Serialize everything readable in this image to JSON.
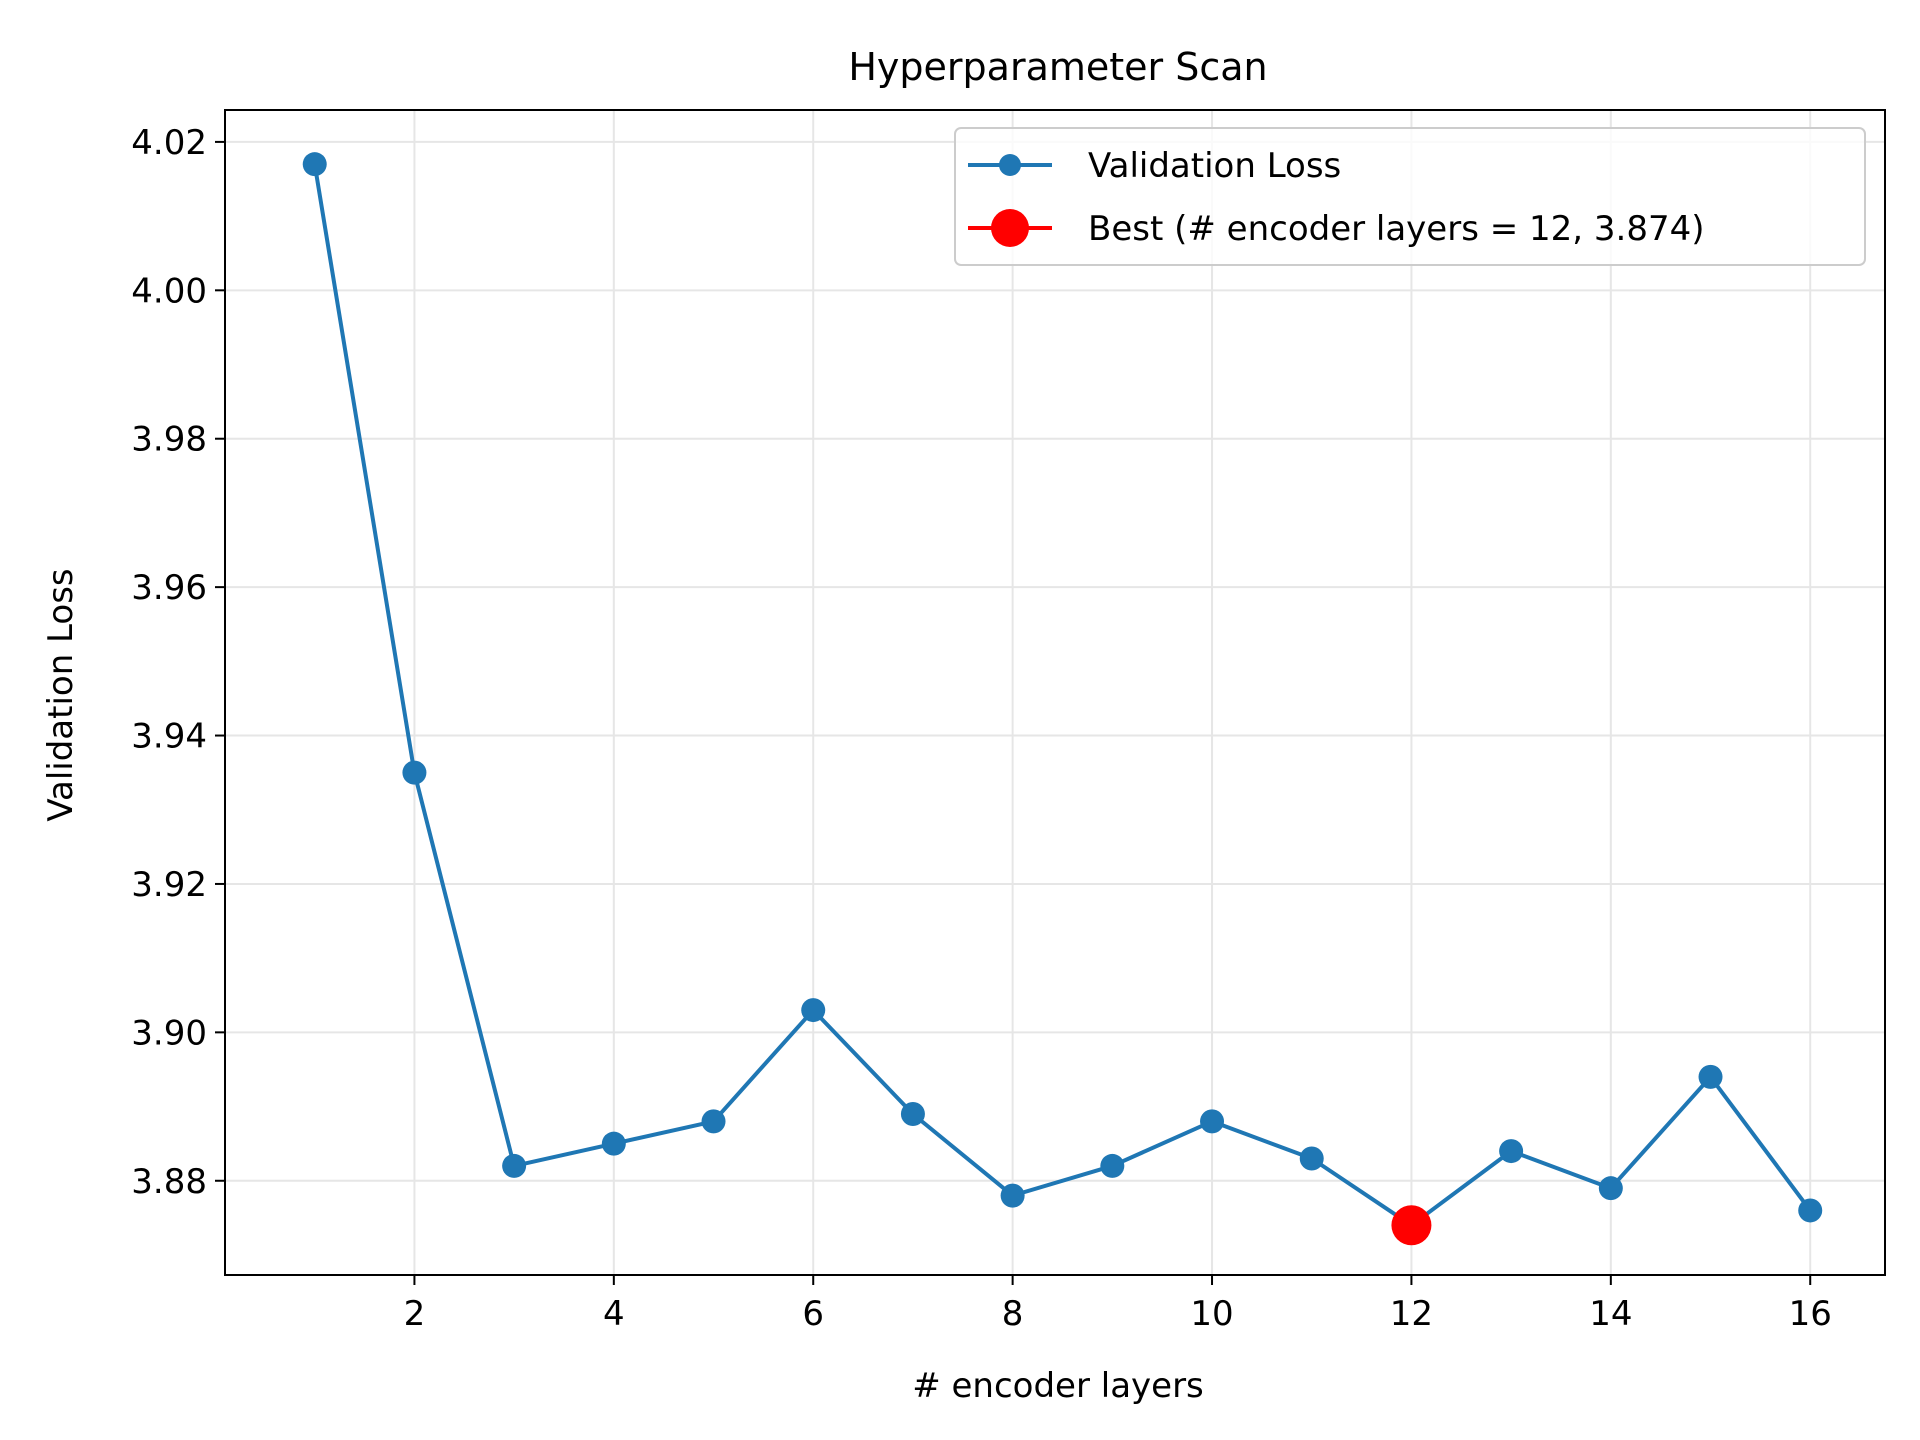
{
  "chart_data": {
    "type": "line",
    "title": "Hyperparameter Scan",
    "xlabel": "# encoder layers",
    "ylabel": "Validation Loss",
    "xlim": [
      0.1,
      16.75
    ],
    "ylim": [
      3.8673,
      4.0243
    ],
    "xticks": [
      2,
      4,
      6,
      8,
      10,
      12,
      14,
      16
    ],
    "yticks": [
      3.88,
      3.9,
      3.92,
      3.94,
      3.96,
      3.98,
      4.0,
      4.02
    ],
    "xtick_labels": [
      "2",
      "4",
      "6",
      "8",
      "10",
      "12",
      "14",
      "16"
    ],
    "ytick_labels": [
      "3.88",
      "3.90",
      "3.92",
      "3.94",
      "3.96",
      "3.98",
      "4.00",
      "4.02"
    ],
    "grid": true,
    "legend_position": "top-right",
    "series": [
      {
        "name": "Validation Loss",
        "color": "#1f77b4",
        "x": [
          1,
          2,
          3,
          4,
          5,
          6,
          7,
          8,
          9,
          10,
          11,
          12,
          13,
          14,
          15,
          16
        ],
        "y": [
          4.017,
          3.935,
          3.882,
          3.885,
          3.888,
          3.903,
          3.889,
          3.878,
          3.882,
          3.888,
          3.883,
          3.874,
          3.884,
          3.879,
          3.894,
          3.876
        ]
      }
    ],
    "highlight": {
      "name": "Best (# encoder layers = 12, 3.874)",
      "color": "#ff0000",
      "x": 12,
      "y": 3.874
    }
  }
}
